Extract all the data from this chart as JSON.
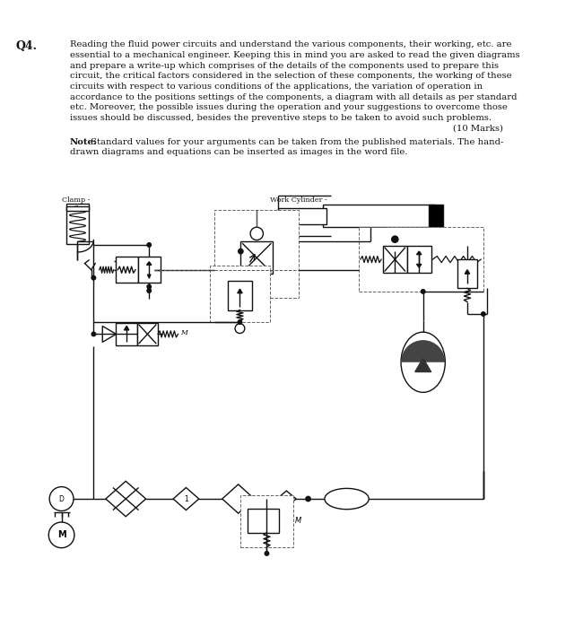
{
  "title_label": "Q4.",
  "para_lines": [
    "Reading the fluid power circuits and understand the various components, their working, etc. are",
    "essential to a mechanical engineer. Keeping this in mind you are asked to read the given diagrams",
    "and prepare a write-up which comprises of the details of the components used to prepare this",
    "circuit, the critical factors considered in the selection of these components, the working of these",
    "circuits with respect to various conditions of the applications, the variation of operation in",
    "accordance to the positions settings of the components, a diagram with all details as per standard",
    "etc. Moreover, the possible issues during the operation and your suggestions to overcome those",
    "issues should be discussed, besides the preventive steps to be taken to avoid such problems."
  ],
  "marks": "(10 Marks)",
  "note_bold": "Note:",
  "note_rest": " Standard values for your arguments can be taken from the published materials. The hand-",
  "note_line2": "drawn diagrams and equations can be inserted as images in the word file.",
  "clamp_label": "Clamp -",
  "work_cyl_label": "Work Cylinder -",
  "bg_color": "#ffffff",
  "text_color": "#111111",
  "lc": "#111111",
  "lw": 1.0,
  "dlw": 0.7,
  "text_fs": 7.2,
  "title_fs": 9.0,
  "label_fs": 5.8
}
